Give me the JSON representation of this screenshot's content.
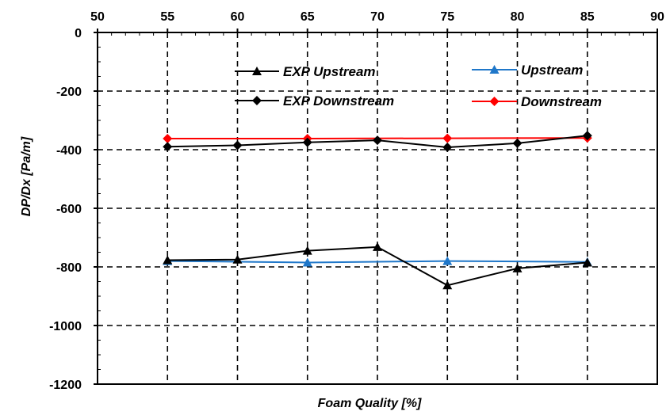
{
  "chart_data": {
    "type": "line",
    "title": "",
    "xlabel": "Foam Quality [%]",
    "ylabel": "DP/Dx [Pa/m]",
    "x_axis_position": "top",
    "xlim": [
      50,
      90
    ],
    "ylim": [
      -1200,
      0
    ],
    "x_ticks": [
      "50",
      "55",
      "60",
      "65",
      "70",
      "75",
      "80",
      "85",
      "90"
    ],
    "y_ticks": [
      "0",
      "-200",
      "-400",
      "-600",
      "-800",
      "-1000",
      "-1200"
    ],
    "grid": "dashed",
    "legend_position": "top",
    "series": [
      {
        "name": "EXP Upstream",
        "color": "#000000",
        "marker": "triangle",
        "x": [
          55,
          60,
          65,
          70,
          75,
          80,
          85
        ],
        "values": [
          -777,
          -775,
          -745,
          -732,
          -863,
          -805,
          -785
        ]
      },
      {
        "name": "EXP Downstream",
        "color": "#000000",
        "marker": "diamond",
        "x": [
          55,
          60,
          65,
          70,
          75,
          80,
          85
        ],
        "values": [
          -390,
          -385,
          -375,
          -368,
          -392,
          -378,
          -352
        ]
      },
      {
        "name": "Upstream",
        "color": "#1f77c9",
        "marker": "triangle",
        "x": [
          55,
          65,
          75,
          85
        ],
        "values": [
          -780,
          -785,
          -780,
          -783
        ]
      },
      {
        "name": "Downstream",
        "color": "#ff0000",
        "marker": "diamond",
        "x": [
          55,
          65,
          75,
          85
        ],
        "values": [
          -362,
          -362,
          -361,
          -360
        ]
      }
    ]
  }
}
